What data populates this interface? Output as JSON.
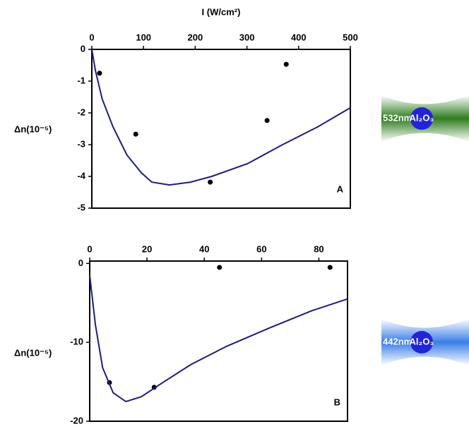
{
  "chart_data": [
    {
      "type": "line",
      "xlabel": "I (W/cm²)",
      "ylabel": "Δn(10⁻⁵)",
      "panel": "A",
      "xlim": [
        0,
        500
      ],
      "xticks": [
        0,
        100,
        200,
        300,
        400,
        500
      ],
      "ylim": [
        -5,
        0
      ],
      "yticks": [
        0,
        -1,
        -2,
        -3,
        -4,
        -5
      ],
      "inset": {
        "wavelength": "532nm",
        "material": "Al₂O₃",
        "color": "#2e7d1e"
      },
      "series": [
        {
          "mode": "markers",
          "color": "#000000",
          "x": [
            15,
            85,
            229,
            339,
            376
          ],
          "values": [
            -0.75,
            -2.67,
            -4.18,
            -2.24,
            -0.47
          ]
        },
        {
          "mode": "line",
          "color": "#1c1c80",
          "x": [
            0,
            7,
            20,
            41,
            68,
            96,
            116,
            150,
            191,
            232,
            301,
            369,
            437,
            500
          ],
          "values": [
            0,
            -0.67,
            -1.56,
            -2.44,
            -3.33,
            -3.89,
            -4.18,
            -4.27,
            -4.18,
            -4,
            -3.6,
            -3,
            -2.44,
            -1.84
          ]
        }
      ]
    },
    {
      "type": "line",
      "ylabel": "Δn(10⁻⁵)",
      "panel": "B",
      "xlim": [
        0,
        90
      ],
      "xticks": [
        0,
        20,
        40,
        60,
        80
      ],
      "ylim": [
        -20,
        0.3
      ],
      "yticks": [
        0,
        -10,
        -20
      ],
      "inset": {
        "wavelength": "442nm",
        "material": "Al₂O₃",
        "color": "#3a7ee8"
      },
      "series": [
        {
          "mode": "markers",
          "color": "#000000",
          "x": [
            6.9,
            22.5,
            45.3,
            83.9
          ],
          "values": [
            -15.1,
            -15.7,
            -0.5,
            -0.5
          ]
        },
        {
          "mode": "line",
          "color": "#1c1c80",
          "x": [
            0,
            2,
            4.5,
            8.2,
            12.6,
            18,
            25.5,
            35.4,
            47.8,
            62.6,
            77.5,
            90
          ],
          "values": [
            -1.5,
            -7.8,
            -13.2,
            -16.4,
            -17.5,
            -16.9,
            -15.1,
            -12.8,
            -10.5,
            -8.2,
            -6,
            -4.5
          ]
        }
      ]
    }
  ]
}
